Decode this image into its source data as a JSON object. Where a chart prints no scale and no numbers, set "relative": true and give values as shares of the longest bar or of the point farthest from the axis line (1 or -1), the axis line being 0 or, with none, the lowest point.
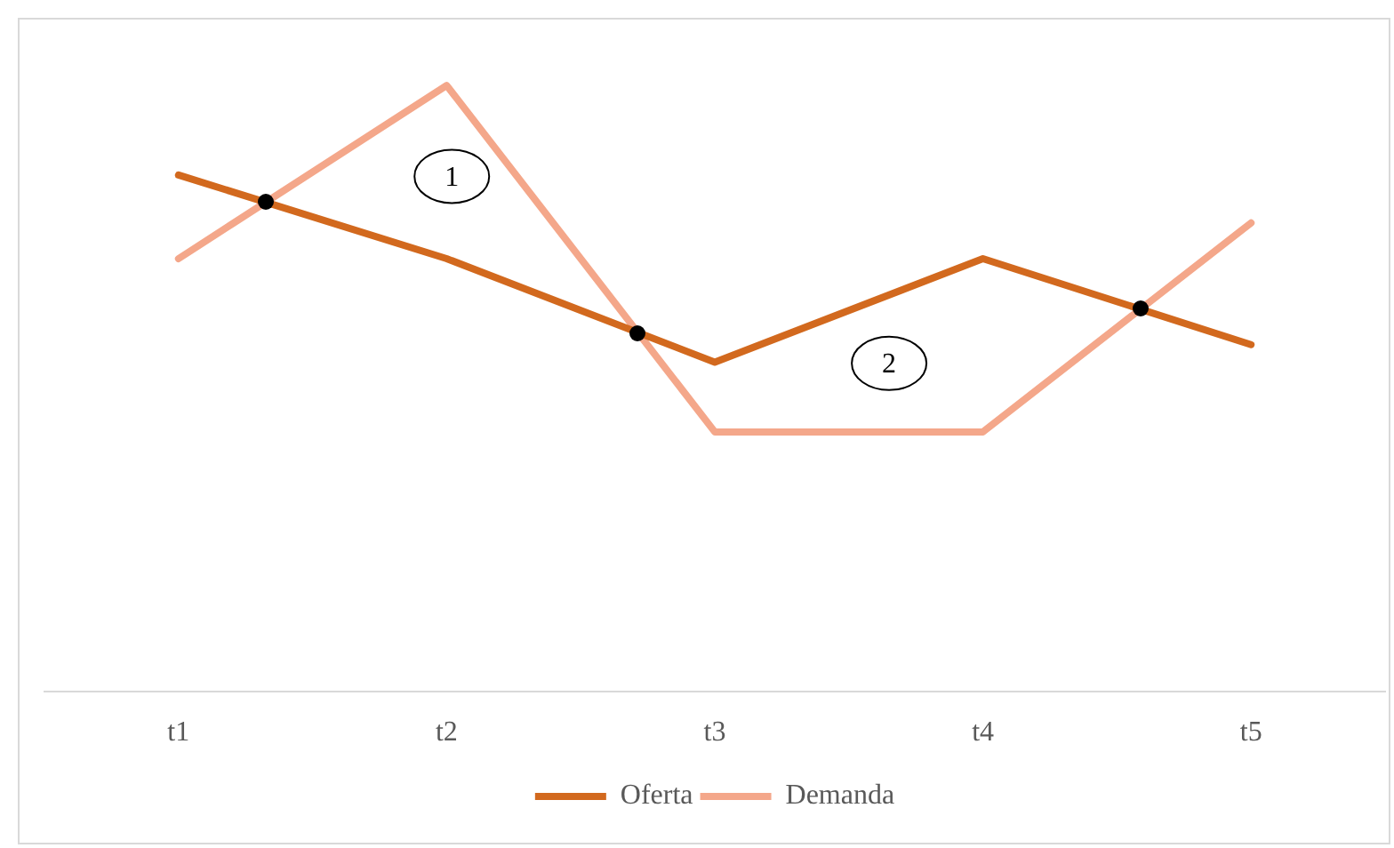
{
  "chart_data": {
    "type": "line",
    "categories": [
      "t1",
      "t2",
      "t3",
      "t4",
      "t5"
    ],
    "relative": true,
    "series": [
      {
        "name": "Oferta",
        "color": "#d2691e",
        "values": [
          0.852,
          0.714,
          0.543,
          0.714,
          0.572
        ]
      },
      {
        "name": "Demanda",
        "color": "#f4a78a",
        "values": [
          0.714,
          1,
          0.428,
          0.428,
          0.773
        ]
      }
    ],
    "annotations": [
      "1",
      "2"
    ],
    "legend": "bottom",
    "grid": false,
    "marker": "none",
    "line_style": "solid"
  }
}
